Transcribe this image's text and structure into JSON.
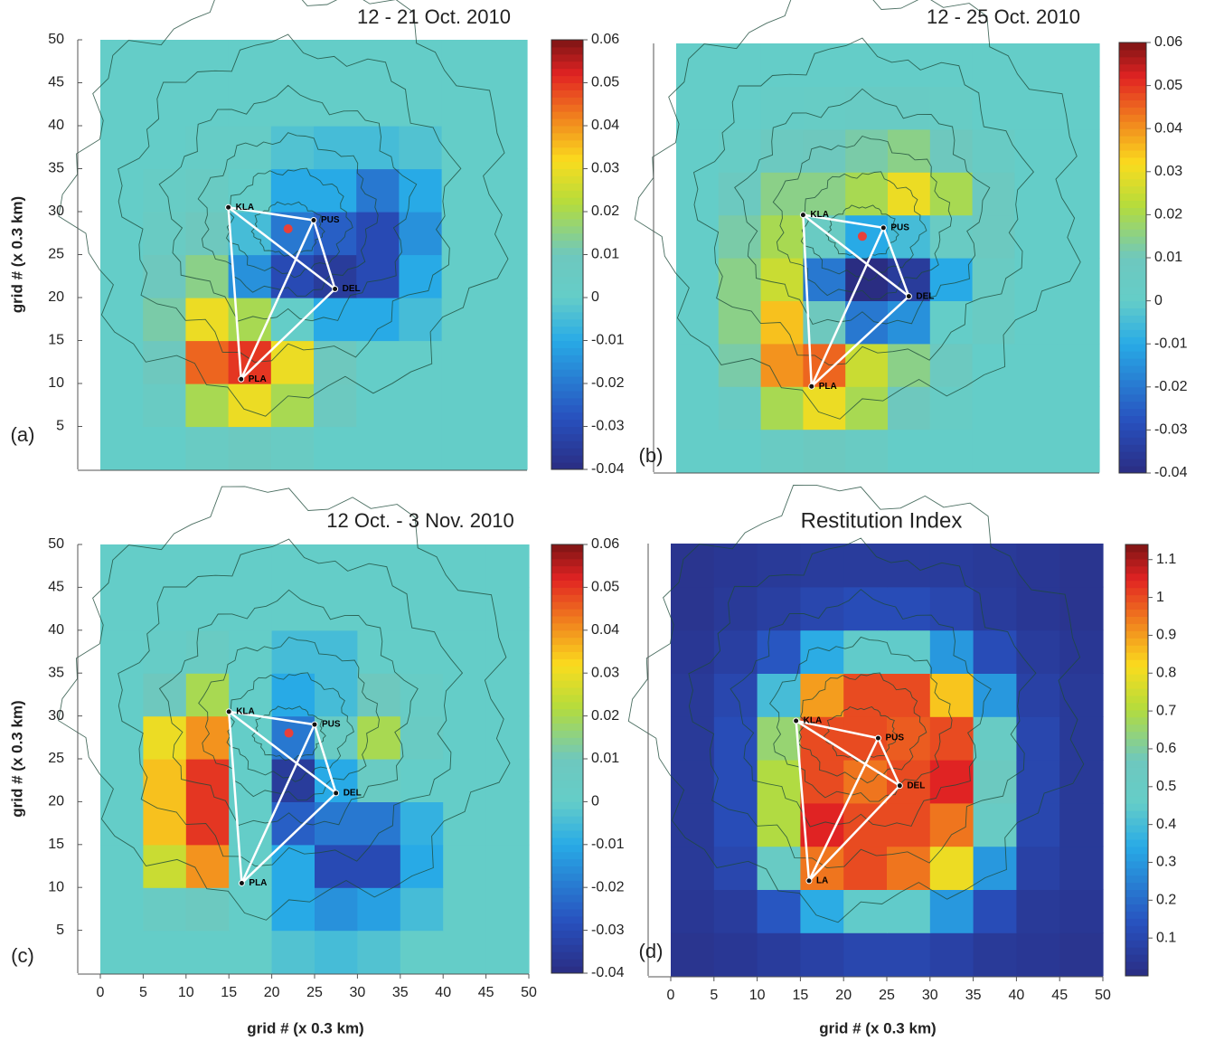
{
  "chart_data": [
    {
      "type": "heatmap",
      "title": "12 - 21 Oct. 2010",
      "panel_label": "(a)",
      "y_label": "grid # (x 0.3 km)",
      "colormap": "jet",
      "xlim": [
        0,
        50
      ],
      "ylim": [
        0,
        50
      ],
      "yticks": [
        5,
        10,
        15,
        20,
        25,
        30,
        35,
        40,
        45,
        50
      ],
      "zlim": [
        -0.04,
        0.06
      ],
      "zticks": [
        -0.04,
        -0.03,
        -0.02,
        -0.01,
        0,
        0.01,
        0.02,
        0.03,
        0.04,
        0.05,
        0.06
      ],
      "x": [
        2.5,
        7.5,
        12.5,
        17.5,
        22.5,
        27.5,
        32.5,
        37.5,
        42.5,
        47.5
      ],
      "y": [
        2.5,
        7.5,
        12.5,
        17.5,
        22.5,
        27.5,
        32.5,
        37.5,
        42.5,
        47.5
      ],
      "z": [
        [
          0,
          0,
          0.005,
          0.008,
          0.005,
          0,
          0,
          0,
          0,
          0
        ],
        [
          0,
          0.005,
          0.02,
          0.03,
          0.02,
          0.008,
          0,
          0,
          0,
          0
        ],
        [
          0,
          0.01,
          0.045,
          0.05,
          0.03,
          0.01,
          0,
          0,
          0,
          0
        ],
        [
          0,
          0.012,
          0.03,
          0.02,
          0,
          -0.01,
          -0.01,
          -0.005,
          0,
          0
        ],
        [
          0,
          0.01,
          0.015,
          -0.015,
          -0.03,
          -0.035,
          -0.03,
          -0.01,
          0,
          0
        ],
        [
          0,
          0.005,
          0.01,
          -0.005,
          -0.02,
          -0.025,
          -0.03,
          -0.015,
          0,
          0
        ],
        [
          0,
          0.003,
          0.005,
          0,
          -0.01,
          -0.01,
          -0.02,
          -0.01,
          0,
          0
        ],
        [
          0,
          0,
          0.002,
          0.002,
          -0.003,
          -0.005,
          -0.005,
          -0.003,
          0,
          0
        ],
        [
          0,
          0,
          0,
          0,
          0,
          0,
          0,
          0,
          0,
          0
        ],
        [
          0,
          0,
          0,
          0,
          0,
          0,
          0,
          0,
          0,
          0
        ]
      ],
      "stations": [
        {
          "name": "KLA",
          "x": 15,
          "y": 30.5
        },
        {
          "name": "PUS",
          "x": 25,
          "y": 29
        },
        {
          "name": "DEL",
          "x": 27.5,
          "y": 21
        },
        {
          "name": "PLA",
          "x": 16.5,
          "y": 10.5
        }
      ],
      "points": [
        {
          "x": 22,
          "y": 28,
          "color": "#e8403a"
        }
      ]
    },
    {
      "type": "heatmap",
      "title": "12 - 25 Oct. 2010",
      "panel_label": "(b)",
      "colormap": "jet",
      "xlim": [
        0,
        50
      ],
      "ylim": [
        0,
        50
      ],
      "zlim": [
        -0.04,
        0.06
      ],
      "zticks": [
        -0.04,
        -0.03,
        -0.02,
        -0.01,
        0,
        0.01,
        0.02,
        0.03,
        0.04,
        0.05,
        0.06
      ],
      "x": [
        2.5,
        7.5,
        12.5,
        17.5,
        22.5,
        27.5,
        32.5,
        37.5,
        42.5,
        47.5
      ],
      "y": [
        2.5,
        7.5,
        12.5,
        17.5,
        22.5,
        27.5,
        32.5,
        37.5,
        42.5,
        47.5
      ],
      "z": [
        [
          0,
          0,
          0.005,
          0.008,
          0.005,
          0,
          0,
          0,
          0,
          0
        ],
        [
          0,
          0.005,
          0.02,
          0.03,
          0.02,
          0.01,
          0.003,
          0,
          0,
          0
        ],
        [
          0,
          0.012,
          0.04,
          0.045,
          0.025,
          0.015,
          0.008,
          0,
          0,
          0
        ],
        [
          0,
          0.015,
          0.035,
          0.01,
          -0.02,
          -0.015,
          0,
          0.005,
          0,
          0
        ],
        [
          0,
          0.015,
          0.025,
          -0.02,
          -0.04,
          -0.035,
          -0.01,
          0.005,
          0,
          0
        ],
        [
          0,
          0.012,
          0.02,
          0.005,
          -0.01,
          -0.005,
          0.005,
          0.008,
          0,
          0
        ],
        [
          0,
          0.008,
          0.015,
          0.015,
          0.02,
          0.03,
          0.02,
          0.008,
          0,
          0
        ],
        [
          0,
          0.003,
          0.008,
          0.01,
          0.012,
          0.015,
          0.01,
          0.004,
          0,
          0
        ],
        [
          0,
          0,
          0.002,
          0.003,
          0.004,
          0.004,
          0.003,
          0,
          0,
          0
        ],
        [
          0,
          0,
          0,
          0,
          0,
          0,
          0,
          0,
          0,
          0
        ]
      ],
      "stations": [
        {
          "name": "KLA",
          "x": 15,
          "y": 30
        },
        {
          "name": "PUS",
          "x": 24.5,
          "y": 28.5
        },
        {
          "name": "DEL",
          "x": 27.5,
          "y": 20.5
        },
        {
          "name": "PLA",
          "x": 16,
          "y": 10
        }
      ],
      "points": [
        {
          "x": 22,
          "y": 27.5,
          "color": "#e8403a"
        }
      ]
    },
    {
      "type": "heatmap",
      "title": "12 Oct. - 3 Nov. 2010",
      "panel_label": "(c)",
      "x_label": "grid # (x 0.3 km)",
      "y_label": "grid # (x 0.3 km)",
      "colormap": "jet",
      "xlim": [
        0,
        50
      ],
      "ylim": [
        0,
        50
      ],
      "xticks": [
        0,
        5,
        10,
        15,
        20,
        25,
        30,
        35,
        40,
        45,
        50
      ],
      "yticks": [
        5,
        10,
        15,
        20,
        25,
        30,
        35,
        40,
        45,
        50
      ],
      "zlim": [
        -0.04,
        0.06
      ],
      "zticks": [
        -0.04,
        -0.03,
        -0.02,
        -0.01,
        0,
        0.01,
        0.02,
        0.03,
        0.04,
        0.05,
        0.06
      ],
      "x": [
        2.5,
        7.5,
        12.5,
        17.5,
        22.5,
        27.5,
        32.5,
        37.5,
        42.5,
        47.5
      ],
      "y": [
        2.5,
        7.5,
        12.5,
        17.5,
        22.5,
        27.5,
        32.5,
        37.5,
        42.5,
        47.5
      ],
      "z": [
        [
          0,
          0,
          0,
          0,
          -0.003,
          -0.005,
          -0.003,
          0,
          0,
          0
        ],
        [
          0,
          0.005,
          0.008,
          0,
          -0.01,
          -0.015,
          -0.012,
          -0.005,
          0,
          0
        ],
        [
          0,
          0.025,
          0.04,
          0,
          -0.01,
          -0.03,
          -0.03,
          -0.01,
          0,
          0
        ],
        [
          0,
          0.035,
          0.05,
          0,
          -0.025,
          -0.02,
          -0.02,
          -0.008,
          0,
          0
        ],
        [
          0,
          0.035,
          0.05,
          0,
          -0.035,
          -0.01,
          0.005,
          0,
          0,
          0
        ],
        [
          0,
          0.03,
          0.04,
          0,
          -0.02,
          0.005,
          0.02,
          0.005,
          0,
          0
        ],
        [
          0,
          0.01,
          0.02,
          0,
          -0.01,
          -0.005,
          0.01,
          0.003,
          0,
          0
        ],
        [
          0,
          0.002,
          0.005,
          0,
          -0.005,
          -0.005,
          0,
          0,
          0,
          0
        ],
        [
          0,
          0,
          0,
          0,
          0,
          0,
          0,
          0,
          0,
          0
        ],
        [
          0,
          0,
          0,
          0,
          0,
          0,
          0,
          0,
          0,
          0
        ]
      ],
      "stations": [
        {
          "name": "KLA",
          "x": 15,
          "y": 30.5
        },
        {
          "name": "PUS",
          "x": 25,
          "y": 29
        },
        {
          "name": "DEL",
          "x": 27.5,
          "y": 21
        },
        {
          "name": "PLA",
          "x": 16.5,
          "y": 10.5
        }
      ],
      "points": [
        {
          "x": 22,
          "y": 28,
          "color": "#e8403a"
        }
      ]
    },
    {
      "type": "heatmap",
      "title": "Restitution Index",
      "panel_label": "(d)",
      "x_label": "grid # (x 0.3 km)",
      "colormap": "jet",
      "xlim": [
        0,
        50
      ],
      "ylim": [
        0,
        50
      ],
      "xticks": [
        0,
        5,
        10,
        15,
        20,
        25,
        30,
        35,
        40,
        45,
        50
      ],
      "zlim": [
        0,
        1.14
      ],
      "zticks": [
        0.1,
        0.2,
        0.3,
        0.4,
        0.5,
        0.6,
        0.7,
        0.8,
        0.9,
        1,
        1.1
      ],
      "x": [
        2.5,
        7.5,
        12.5,
        17.5,
        22.5,
        27.5,
        32.5,
        37.5,
        42.5,
        47.5
      ],
      "y": [
        2.5,
        7.5,
        12.5,
        17.5,
        22.5,
        27.5,
        32.5,
        37.5,
        42.5,
        47.5
      ],
      "z": [
        [
          0.03,
          0.04,
          0.06,
          0.08,
          0.1,
          0.1,
          0.08,
          0.05,
          0.04,
          0.03
        ],
        [
          0.04,
          0.06,
          0.15,
          0.35,
          0.45,
          0.45,
          0.3,
          0.12,
          0.05,
          0.04
        ],
        [
          0.05,
          0.1,
          0.5,
          0.95,
          1,
          0.95,
          0.8,
          0.3,
          0.08,
          0.05
        ],
        [
          0.05,
          0.12,
          0.7,
          1.05,
          1,
          1,
          0.95,
          0.5,
          0.1,
          0.05
        ],
        [
          0.05,
          0.12,
          0.7,
          1,
          0.95,
          1,
          1.05,
          0.55,
          0.1,
          0.05
        ],
        [
          0.05,
          0.12,
          0.65,
          1,
          1,
          0.98,
          1,
          0.5,
          0.1,
          0.05
        ],
        [
          0.05,
          0.1,
          0.4,
          0.9,
          1,
          1,
          0.85,
          0.3,
          0.08,
          0.05
        ],
        [
          0.04,
          0.07,
          0.15,
          0.35,
          0.45,
          0.45,
          0.3,
          0.12,
          0.06,
          0.04
        ],
        [
          0.03,
          0.05,
          0.07,
          0.1,
          0.12,
          0.12,
          0.1,
          0.06,
          0.04,
          0.03
        ],
        [
          0.03,
          0.04,
          0.05,
          0.06,
          0.06,
          0.06,
          0.06,
          0.05,
          0.04,
          0.03
        ]
      ],
      "stations": [
        {
          "name": "KLA",
          "x": 14.5,
          "y": 29.5
        },
        {
          "name": "PUS",
          "x": 24,
          "y": 27.5
        },
        {
          "name": "DEL",
          "x": 26.5,
          "y": 22
        },
        {
          "name": "LA",
          "x": 16,
          "y": 11
        }
      ]
    }
  ]
}
